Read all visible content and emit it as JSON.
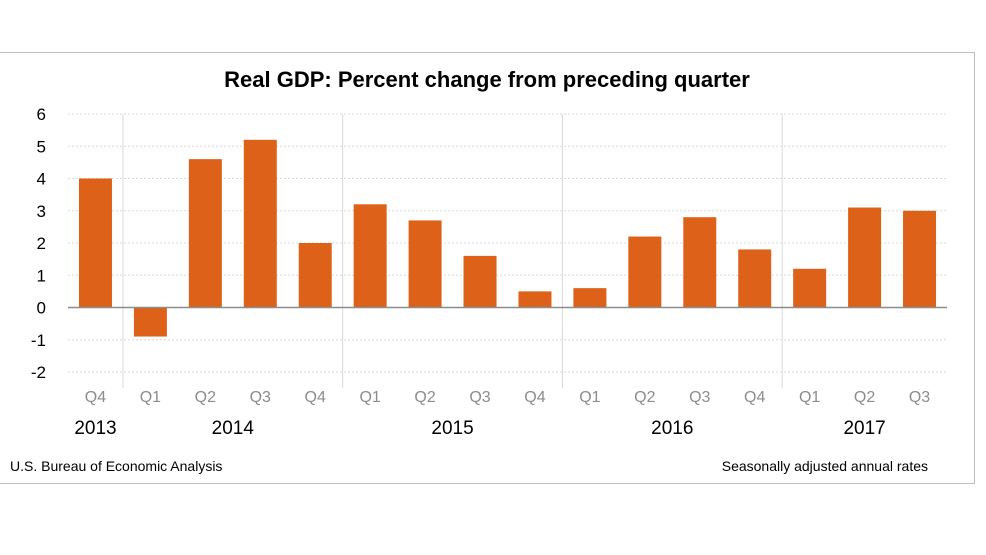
{
  "chart_data": {
    "type": "bar",
    "title": "Real GDP:  Percent change from preceding quarter",
    "categories": [
      "Q4",
      "Q1",
      "Q2",
      "Q3",
      "Q4",
      "Q1",
      "Q2",
      "Q3",
      "Q4",
      "Q1",
      "Q2",
      "Q3",
      "Q4",
      "Q1",
      "Q2",
      "Q3"
    ],
    "years": [
      {
        "label": "2013",
        "start": 0,
        "end": 0
      },
      {
        "label": "2014",
        "start": 1,
        "end": 4
      },
      {
        "label": "2015",
        "start": 5,
        "end": 8
      },
      {
        "label": "2016",
        "start": 9,
        "end": 12
      },
      {
        "label": "2017",
        "start": 13,
        "end": 15
      }
    ],
    "values": [
      4.0,
      -0.9,
      4.6,
      5.2,
      2.0,
      3.2,
      2.7,
      1.6,
      0.5,
      0.6,
      2.2,
      2.8,
      1.8,
      1.2,
      3.1,
      3.0
    ],
    "ylim": [
      -2,
      6
    ],
    "yticks": [
      "-2",
      "-1",
      "0",
      "1",
      "2",
      "3",
      "4",
      "5",
      "6"
    ],
    "grid": true,
    "bar_color": "#dd6119",
    "source": "U.S. Bureau of Economic Analysis",
    "note": "Seasonally adjusted annual  rates"
  }
}
